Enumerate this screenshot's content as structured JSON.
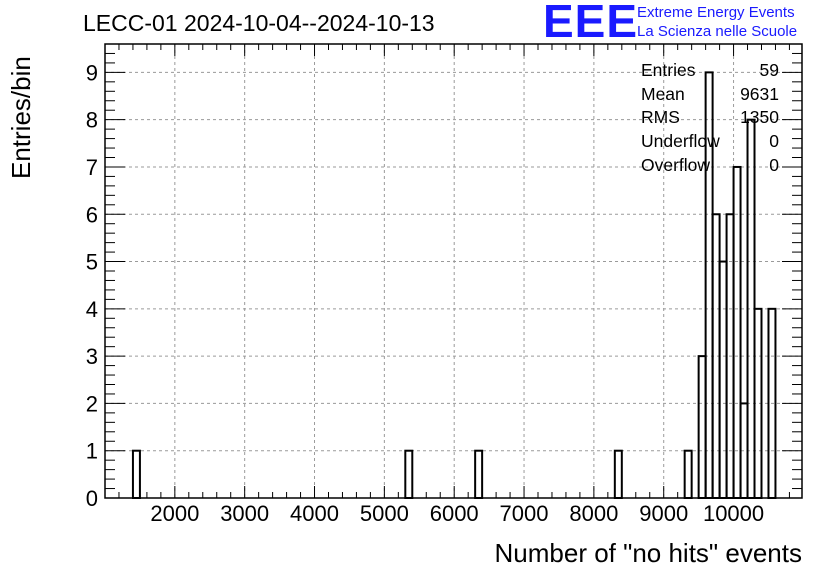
{
  "header": {
    "title": "LECC-01 2024-10-04--2024-10-13",
    "logo_mark": "EEE",
    "logo_line1": "Extreme Energy Events",
    "logo_line2": "La Scienza nelle Scuole"
  },
  "stats": [
    {
      "label": "Entries",
      "value": "59"
    },
    {
      "label": "Mean",
      "value": "9631"
    },
    {
      "label": "RMS",
      "value": "1350"
    },
    {
      "label": "Underflow",
      "value": "0"
    },
    {
      "label": "Overflow",
      "value": "0"
    }
  ],
  "colors": {
    "logo": "#1a1aff",
    "line": "#000000",
    "grid": "#9a9a9a"
  },
  "chart_data": {
    "type": "histogram",
    "xlabel": "Number of \"no hits\" events",
    "ylabel": "Entries/bin",
    "xlim": [
      1000,
      10980
    ],
    "ylim": [
      0,
      9.6
    ],
    "grid": true,
    "x_ticks": [
      2000,
      3000,
      4000,
      5000,
      6000,
      7000,
      8000,
      9000,
      10000
    ],
    "y_ticks": [
      0,
      1,
      2,
      3,
      4,
      5,
      6,
      7,
      8,
      9
    ],
    "bin_width": 100,
    "bins": [
      {
        "x0": 1400,
        "count": 1
      },
      {
        "x0": 5300,
        "count": 1
      },
      {
        "x0": 6300,
        "count": 1
      },
      {
        "x0": 8300,
        "count": 1
      },
      {
        "x0": 9300,
        "count": 1
      },
      {
        "x0": 9500,
        "count": 3
      },
      {
        "x0": 9600,
        "count": 9
      },
      {
        "x0": 9700,
        "count": 6
      },
      {
        "x0": 9800,
        "count": 5
      },
      {
        "x0": 9900,
        "count": 6
      },
      {
        "x0": 10000,
        "count": 7
      },
      {
        "x0": 10100,
        "count": 2
      },
      {
        "x0": 10200,
        "count": 8
      },
      {
        "x0": 10300,
        "count": 4
      },
      {
        "x0": 10500,
        "count": 4
      }
    ]
  }
}
